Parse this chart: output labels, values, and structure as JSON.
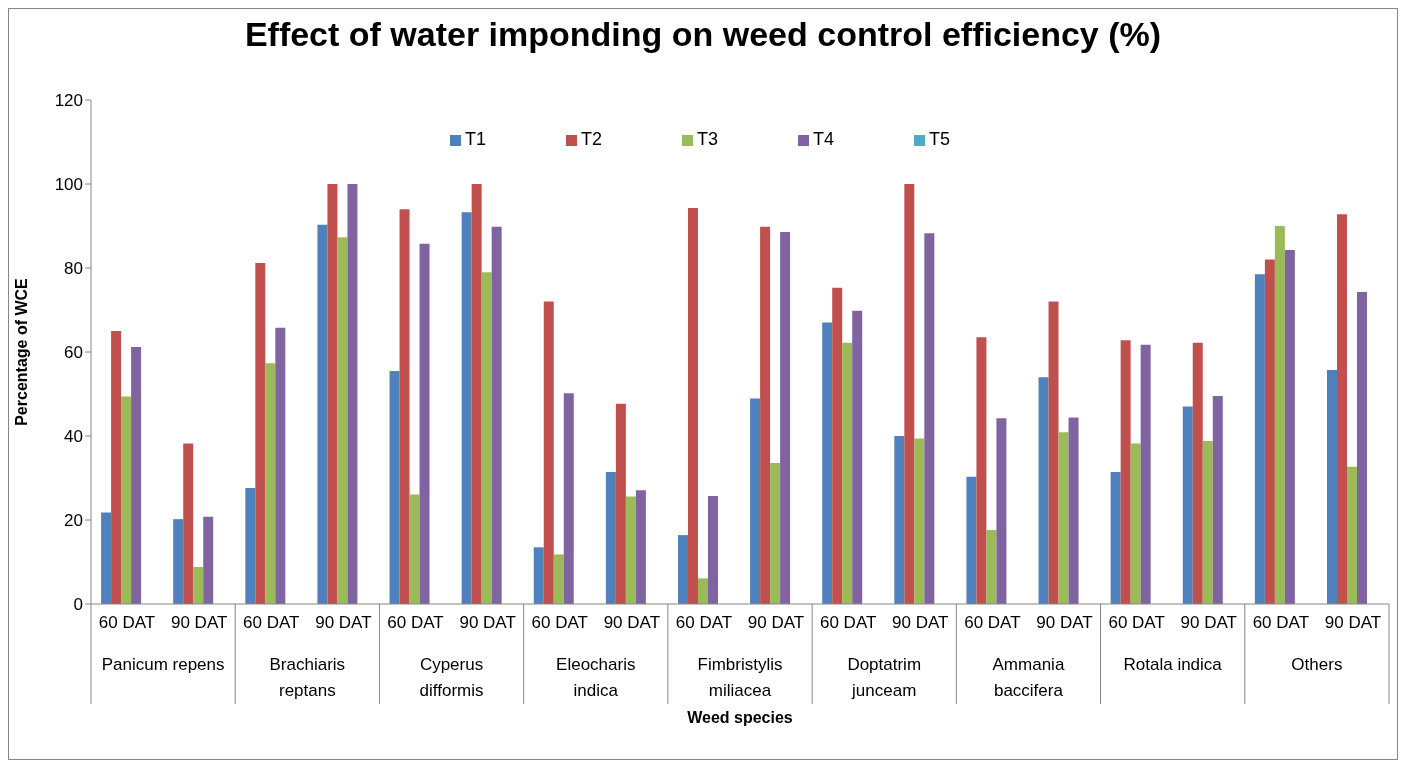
{
  "chart_data": {
    "type": "bar",
    "title": "Effect of water imponding on weed control efficiency  (%)",
    "xlabel": "Weed species",
    "ylabel": "Percentage of WCE",
    "categories": [
      "60 DAT",
      "90 DAT",
      "60 DAT",
      "90 DAT",
      "60 DAT",
      "90 DAT",
      "60 DAT",
      "90 DAT",
      "60 DAT",
      "90 DAT",
      "60 DAT",
      "90 DAT",
      "60 DAT",
      "90 DAT",
      "60 DAT",
      "90 DAT",
      "60 DAT",
      "90 DAT"
    ],
    "annotations": [
      "Panicum repens",
      "Brachiaris reptans",
      "Cyperus difformis",
      "Eleocharis indica",
      "Fimbristylis miliacea",
      "Doptatrim junceam",
      "Ammania baccifera",
      "Rotala indica",
      "Others"
    ],
    "series": [
      {
        "name": "T1",
        "color": "#4f81bd",
        "values": [
          21.8,
          20.2,
          27.6,
          90.3,
          55.5,
          93.3,
          13.5,
          31.4,
          16.4,
          48.9,
          67,
          40,
          30.3,
          54,
          31.4,
          47,
          78.5,
          55.7
        ]
      },
      {
        "name": "T2",
        "color": "#c0504d",
        "values": [
          65,
          38.2,
          81.2,
          100,
          94,
          100,
          72,
          47.7,
          94.3,
          89.8,
          75.3,
          100,
          63.5,
          72,
          62.8,
          62.2,
          82,
          92.8
        ]
      },
      {
        "name": "T3",
        "color": "#9bbb59",
        "values": [
          49.4,
          8.8,
          57.3,
          87.3,
          26.1,
          79,
          11.8,
          25.6,
          6.1,
          33.6,
          62.2,
          39.4,
          17.6,
          40.9,
          38.2,
          38.8,
          90,
          32.7
        ]
      },
      {
        "name": "T4",
        "color": "#8064a2",
        "values": [
          61.2,
          20.8,
          65.8,
          100,
          85.8,
          89.8,
          50.2,
          27.1,
          25.7,
          88.6,
          69.8,
          88.3,
          44.2,
          44.4,
          61.7,
          49.5,
          84.3,
          74.3
        ]
      },
      {
        "name": "T5",
        "color": "#4bacc6",
        "values": [
          null,
          null,
          null,
          null,
          null,
          null,
          null,
          null,
          null,
          null,
          null,
          null,
          null,
          null,
          null,
          null,
          null,
          null
        ]
      }
    ],
    "ylim": [
      0,
      120
    ],
    "yticks": [
      0,
      20,
      40,
      60,
      80,
      100,
      120
    ],
    "grid": false,
    "legend": "top"
  }
}
